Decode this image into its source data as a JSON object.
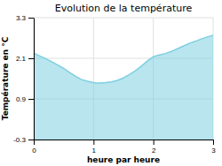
{
  "chart_data": {
    "type": "area",
    "title": "Evolution de la température",
    "xlabel": "heure par heure",
    "ylabel": "Température en °C",
    "x": [
      0.0,
      0.1,
      0.2,
      0.3,
      0.4,
      0.5,
      0.6,
      0.7,
      0.8,
      0.9,
      1.0,
      1.05,
      1.1,
      1.2,
      1.3,
      1.4,
      1.5,
      1.6,
      1.7,
      1.8,
      1.9,
      2.0,
      2.1,
      2.2,
      2.3,
      2.4,
      2.5,
      2.6,
      2.7,
      2.8,
      2.9,
      3.0
    ],
    "values": [
      2.25,
      2.17,
      2.09,
      2.0,
      1.9,
      1.8,
      1.68,
      1.57,
      1.47,
      1.42,
      1.38,
      1.37,
      1.37,
      1.38,
      1.4,
      1.45,
      1.52,
      1.62,
      1.73,
      1.87,
      2.02,
      2.15,
      2.2,
      2.24,
      2.3,
      2.38,
      2.46,
      2.54,
      2.6,
      2.67,
      2.73,
      2.78
    ],
    "color": "#7ecfe0",
    "xlim": [
      0,
      3
    ],
    "ylim": [
      -0.3,
      3.3
    ],
    "xticks": [
      0,
      1,
      2,
      3
    ],
    "yticks": [
      -0.3,
      0.9,
      2.1,
      3.3
    ],
    "grid": true
  }
}
